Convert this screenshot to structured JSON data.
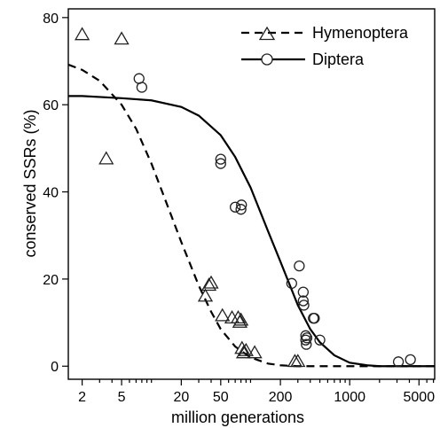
{
  "chart_data": {
    "type": "scatter",
    "title": "",
    "xlabel": "million generations",
    "ylabel": "conserved SSRs (%)",
    "x_scale": "log",
    "xlim": [
      1.45,
      7200
    ],
    "ylim": [
      -3,
      82
    ],
    "x_ticks": [
      {
        "value": 2,
        "label": "2"
      },
      {
        "value": 5,
        "label": "5"
      },
      {
        "value": 20,
        "label": "20"
      },
      {
        "value": 50,
        "label": "50"
      },
      {
        "value": 200,
        "label": "200"
      },
      {
        "value": 1000,
        "label": "1000"
      },
      {
        "value": 5000,
        "label": "5000"
      }
    ],
    "y_ticks": [
      {
        "value": 0,
        "label": "0"
      },
      {
        "value": 20,
        "label": "20"
      },
      {
        "value": 40,
        "label": "40"
      },
      {
        "value": 60,
        "label": "60"
      },
      {
        "value": 80,
        "label": "80"
      }
    ],
    "grid": false,
    "legend_position": "top-right",
    "series": [
      {
        "name": "Hymenoptera",
        "marker": "triangle",
        "line_style": "dashed",
        "points": [
          {
            "x": 2,
            "y": 76
          },
          {
            "x": 3.5,
            "y": 47.5
          },
          {
            "x": 5,
            "y": 75
          },
          {
            "x": 35,
            "y": 16
          },
          {
            "x": 38,
            "y": 18.5
          },
          {
            "x": 40,
            "y": 19
          },
          {
            "x": 52,
            "y": 11.5
          },
          {
            "x": 65,
            "y": 11
          },
          {
            "x": 75,
            "y": 11
          },
          {
            "x": 78,
            "y": 10
          },
          {
            "x": 80,
            "y": 10.5
          },
          {
            "x": 82,
            "y": 4
          },
          {
            "x": 85,
            "y": 3
          },
          {
            "x": 90,
            "y": 3.5
          },
          {
            "x": 110,
            "y": 3
          },
          {
            "x": 280,
            "y": 1
          },
          {
            "x": 300,
            "y": 1
          }
        ],
        "curve": [
          {
            "x": 1.45,
            "y": 69.2
          },
          {
            "x": 2,
            "y": 68
          },
          {
            "x": 3,
            "y": 65.5
          },
          {
            "x": 5,
            "y": 60
          },
          {
            "x": 7,
            "y": 54.5
          },
          {
            "x": 10,
            "y": 46.5
          },
          {
            "x": 15,
            "y": 36
          },
          {
            "x": 20,
            "y": 28.5
          },
          {
            "x": 30,
            "y": 18.5
          },
          {
            "x": 40,
            "y": 12.5
          },
          {
            "x": 50,
            "y": 8.5
          },
          {
            "x": 70,
            "y": 4.5
          },
          {
            "x": 100,
            "y": 2
          },
          {
            "x": 150,
            "y": 0.6
          },
          {
            "x": 200,
            "y": 0.2
          },
          {
            "x": 300,
            "y": 0
          },
          {
            "x": 7200,
            "y": 0
          }
        ]
      },
      {
        "name": "Diptera",
        "marker": "circle",
        "line_style": "solid",
        "points": [
          {
            "x": 7.5,
            "y": 66
          },
          {
            "x": 8,
            "y": 64
          },
          {
            "x": 50,
            "y": 47.5
          },
          {
            "x": 50,
            "y": 46.5
          },
          {
            "x": 70,
            "y": 36.5
          },
          {
            "x": 80,
            "y": 36
          },
          {
            "x": 81,
            "y": 37
          },
          {
            "x": 260,
            "y": 19
          },
          {
            "x": 310,
            "y": 23
          },
          {
            "x": 340,
            "y": 17
          },
          {
            "x": 340,
            "y": 15
          },
          {
            "x": 345,
            "y": 14
          },
          {
            "x": 360,
            "y": 7
          },
          {
            "x": 360,
            "y": 6
          },
          {
            "x": 365,
            "y": 5
          },
          {
            "x": 370,
            "y": 6.5
          },
          {
            "x": 430,
            "y": 11
          },
          {
            "x": 440,
            "y": 11
          },
          {
            "x": 500,
            "y": 6
          },
          {
            "x": 3100,
            "y": 1
          },
          {
            "x": 4100,
            "y": 1.5
          }
        ],
        "curve": [
          {
            "x": 1.45,
            "y": 62
          },
          {
            "x": 2,
            "y": 62
          },
          {
            "x": 5,
            "y": 61.5
          },
          {
            "x": 10,
            "y": 61
          },
          {
            "x": 20,
            "y": 59.5
          },
          {
            "x": 30,
            "y": 57.5
          },
          {
            "x": 50,
            "y": 53
          },
          {
            "x": 70,
            "y": 48
          },
          {
            "x": 100,
            "y": 41
          },
          {
            "x": 150,
            "y": 31
          },
          {
            "x": 200,
            "y": 24
          },
          {
            "x": 300,
            "y": 14
          },
          {
            "x": 400,
            "y": 8.5
          },
          {
            "x": 500,
            "y": 5.5
          },
          {
            "x": 700,
            "y": 2.5
          },
          {
            "x": 1000,
            "y": 0.8
          },
          {
            "x": 1500,
            "y": 0.2
          },
          {
            "x": 2000,
            "y": 0
          },
          {
            "x": 7200,
            "y": 0
          }
        ]
      }
    ]
  }
}
